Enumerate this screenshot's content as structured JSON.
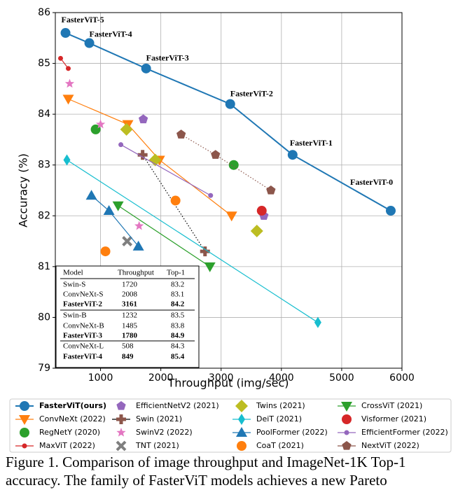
{
  "chart_data": {
    "type": "scatter",
    "xlabel": "Throughput (img/sec)",
    "ylabel": "Accuracy (%)",
    "xlim": [
      250,
      6000
    ],
    "ylim": [
      79,
      86
    ],
    "xticks": [
      1000,
      2000,
      3000,
      4000,
      5000,
      6000
    ],
    "yticks": [
      79,
      80,
      81,
      82,
      83,
      84,
      85,
      86
    ],
    "grid": true,
    "legend": "bottom",
    "series": [
      {
        "name": "FasterViT(ours)",
        "color": "#1f77b4",
        "marker": "circle",
        "line": "solid",
        "x": [
          419,
          814,
          1756,
          3151,
          4186,
          5814
        ],
        "values": [
          85.6,
          85.4,
          84.9,
          84.2,
          83.2,
          82.1
        ],
        "point_labels": [
          "FasterViT-5",
          "FasterViT-4",
          "FasterViT-3",
          "FasterViT-2",
          "FasterViT-1",
          "FasterViT-0"
        ]
      },
      {
        "name": "ConvNeXt (2022)",
        "color": "#ff7f0e",
        "marker": "triangle-down",
        "line": "solid",
        "x": [
          465,
          1453,
          1977,
          3174
        ],
        "values": [
          84.3,
          83.8,
          83.1,
          82.0
        ]
      },
      {
        "name": "RegNetY (2020)",
        "color": "#2ca02c",
        "marker": "circle",
        "line": null,
        "x": [
          919,
          3209
        ],
        "values": [
          83.7,
          83.0
        ]
      },
      {
        "name": "MaxViT (2022)",
        "color": "#d62728",
        "marker": "small-circle",
        "line": "solid",
        "x": [
          337,
          465
        ],
        "values": [
          85.1,
          84.9
        ]
      },
      {
        "name": "EfficientNetV2 (2021)",
        "color": "#9467bd",
        "marker": "pentagon",
        "line": null,
        "x": [
          1709,
          3709
        ],
        "values": [
          83.9,
          82.0
        ]
      },
      {
        "name": "Swin (2021)",
        "color": "#8c564b",
        "marker": "plus",
        "line": "dotted-black",
        "x": [
          1698,
          2733
        ],
        "values": [
          83.2,
          81.3
        ]
      },
      {
        "name": "SwinV2 (2022)",
        "color": "#e377c2",
        "marker": "star",
        "line": null,
        "x": [
          488,
          1000,
          1640
        ],
        "values": [
          84.6,
          83.8,
          81.8
        ]
      },
      {
        "name": "TNT (2021)",
        "color": "#7f7f7f",
        "marker": "x",
        "line": null,
        "x": [
          1442
        ],
        "values": [
          81.5
        ]
      },
      {
        "name": "Twins (2021)",
        "color": "#bcbd22",
        "marker": "diamond",
        "line": null,
        "x": [
          1430,
          1907,
          3593
        ],
        "values": [
          83.7,
          83.1,
          81.7
        ]
      },
      {
        "name": "DeiT (2021)",
        "color": "#17becf",
        "marker": "thin-diamond",
        "line": "solid",
        "x": [
          442,
          4605
        ],
        "values": [
          83.1,
          79.9
        ]
      },
      {
        "name": "PoolFormer (2022)",
        "color": "#1f77b4",
        "marker": "triangle-up",
        "line": "solid",
        "x": [
          849,
          1140,
          1628
        ],
        "values": [
          82.4,
          82.1,
          81.4
        ]
      },
      {
        "name": "CoaT (2021)",
        "color": "#ff7f0e",
        "marker": "circle",
        "line": null,
        "x": [
          2244,
          1081
        ],
        "values": [
          82.3,
          81.3
        ]
      },
      {
        "name": "CrossViT (2021)",
        "color": "#2ca02c",
        "marker": "triangle-down",
        "line": "solid",
        "x": [
          1291,
          2814
        ],
        "values": [
          82.2,
          81.0
        ]
      },
      {
        "name": "Visformer (2021)",
        "color": "#d62728",
        "marker": "circle",
        "line": null,
        "x": [
          3674
        ],
        "values": [
          82.1
        ]
      },
      {
        "name": "EfficientFormer (2022)",
        "color": "#9467bd",
        "marker": "small-circle",
        "line": "solid",
        "x": [
          1337,
          2826
        ],
        "values": [
          83.4,
          82.4
        ]
      },
      {
        "name": "NextViT (2022)",
        "color": "#8c564b",
        "marker": "pentagon",
        "line": "dotted",
        "x": [
          2337,
          2907,
          3826
        ],
        "values": [
          83.6,
          83.2,
          82.5
        ]
      }
    ]
  },
  "table": {
    "columns": [
      "Model",
      "Throughput",
      "Top-1"
    ],
    "rows": [
      [
        "Swin-S",
        1720,
        83.2
      ],
      [
        "ConvNeXt-S",
        2008,
        83.1
      ],
      [
        "FasterViT-2",
        3161,
        84.2
      ],
      [
        "Swin-B",
        1232,
        83.5
      ],
      [
        "ConvNeXt-B",
        1485,
        83.8
      ],
      [
        "FasterViT-3",
        1780,
        84.9
      ],
      [
        "ConvNeXt-L",
        508,
        84.3
      ],
      [
        "FasterViT-4",
        849,
        85.4
      ]
    ],
    "bold_rows": [
      2,
      5,
      7
    ]
  },
  "caption": [
    "Figure 1. Comparison of image throughput and ImageNet-1K Top-1",
    "accuracy. The family of FasterViT models achieves a new Pareto"
  ]
}
